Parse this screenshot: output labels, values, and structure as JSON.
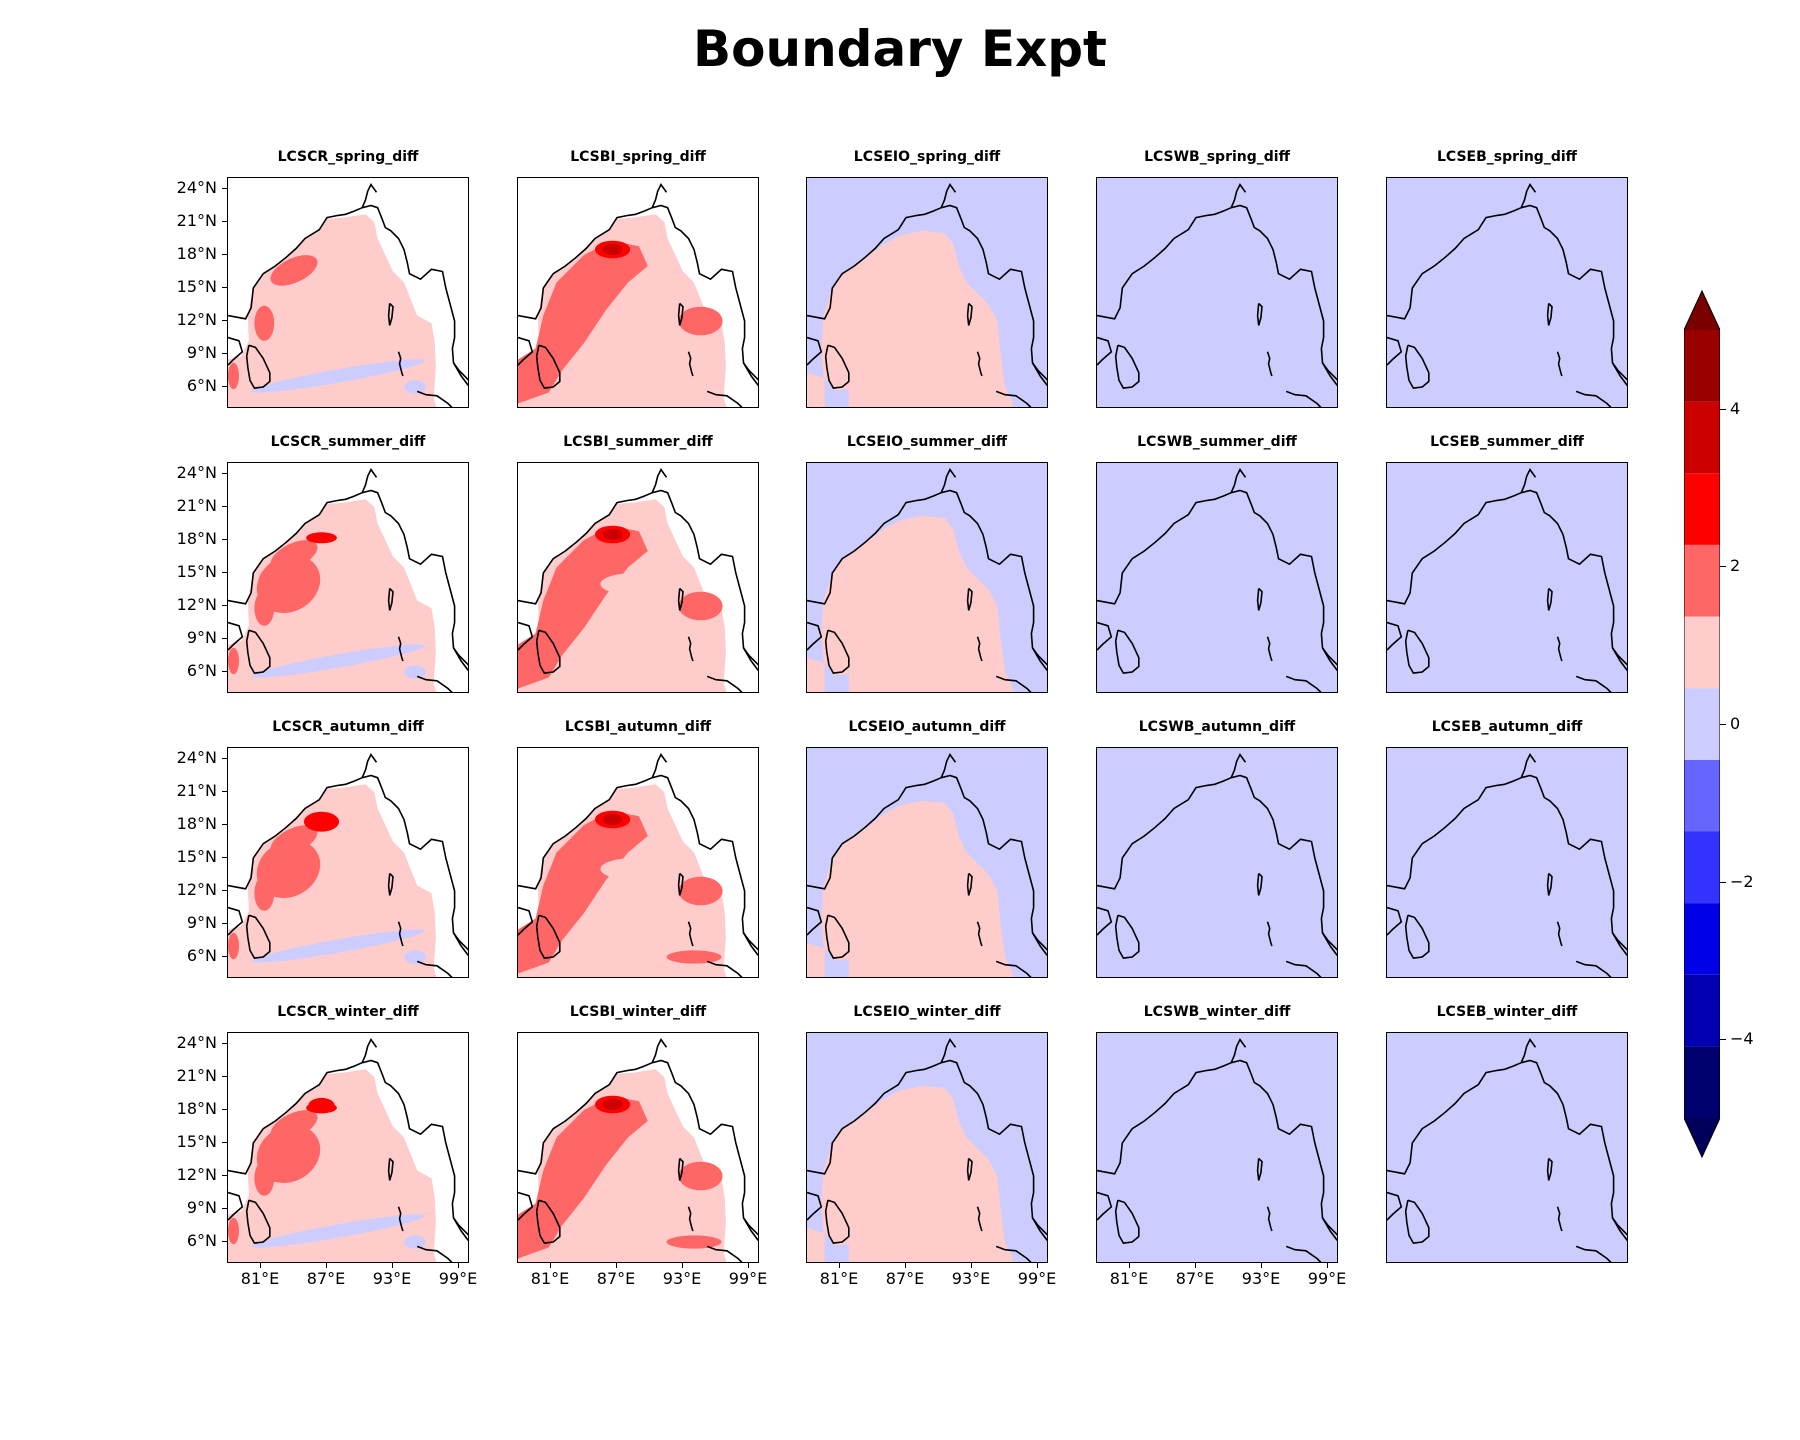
{
  "title": "Boundary Expt",
  "rows": [
    "spring",
    "summer",
    "autumn",
    "winter"
  ],
  "experiments": [
    "LCSCR",
    "LCSBI",
    "LCSEIO",
    "LCSWB",
    "LCSEB"
  ],
  "panel_titles": [
    [
      "LCSCR_spring_diff",
      "LCSBI_spring_diff",
      "LCSEIO_spring_diff",
      "LCSWB_spring_diff",
      "LCSEB_spring_diff"
    ],
    [
      "LCSCR_summer_diff",
      "LCSBI_summer_diff",
      "LCSEIO_summer_diff",
      "LCSWB_summer_diff",
      "LCSEB_summer_diff"
    ],
    [
      "LCSCR_autumn_diff",
      "LCSBI_autumn_diff",
      "LCSEIO_autumn_diff",
      "LCSWB_autumn_diff",
      "LCSEB_autumn_diff"
    ],
    [
      "LCSCR_winter_diff",
      "LCSBI_winter_diff",
      "LCSEIO_winter_diff",
      "LCSWB_winter_diff",
      "LCSEB_winter_diff"
    ]
  ],
  "lat_ticks": [
    "24°N",
    "21°N",
    "18°N",
    "15°N",
    "12°N",
    "9°N",
    "6°N"
  ],
  "lat_values": [
    24,
    21,
    18,
    15,
    12,
    9,
    6
  ],
  "lon_ticks": [
    "81°E",
    "87°E",
    "93°E",
    "99°E"
  ],
  "lon_values": [
    81,
    87,
    93,
    99
  ],
  "map_extent": {
    "lon": [
      78,
      100
    ],
    "lat": [
      4,
      25
    ]
  },
  "colorbar": {
    "levels": [
      -5,
      -4,
      -3,
      -2,
      -1,
      0,
      1,
      2,
      3,
      4,
      5
    ],
    "colors": [
      "#00006e",
      "#0000b0",
      "#0000e6",
      "#3333ff",
      "#6666ff",
      "#ccccff",
      "#ffcccc",
      "#ff6666",
      "#ff0000",
      "#cc0000",
      "#990000"
    ],
    "under_color": "#00005a",
    "over_color": "#7a0000",
    "tick_values": [
      4,
      2,
      0,
      -2,
      -4
    ],
    "tick_labels": [
      "4",
      "2",
      "0",
      "−2",
      "−4"
    ],
    "extend": "both"
  },
  "panel_fields": {
    "LCSCR": "mostly 0 to 1 over Bay of Bengal, patches 1 to 2 near 15-18°N and 81-84°E, weak negative south of Sri Lanka",
    "LCSBI": "broad 1 to 2 over western bay, core 2 to 4 near 18°N 86-88°E",
    "LCSEIO": "0 to 1 over the bay, -1 to 0 at land margins",
    "LCSWB": "uniform -1 to 0",
    "LCSEB": "uniform -1 to 0"
  },
  "colors": {
    "land_light": "#ccccff",
    "pos_light": "#ffcccc",
    "pos_mid": "#ff6666",
    "pos_strong": "#ff0000",
    "pos_core": "#cc0000",
    "neg_light": "#ccccff"
  }
}
